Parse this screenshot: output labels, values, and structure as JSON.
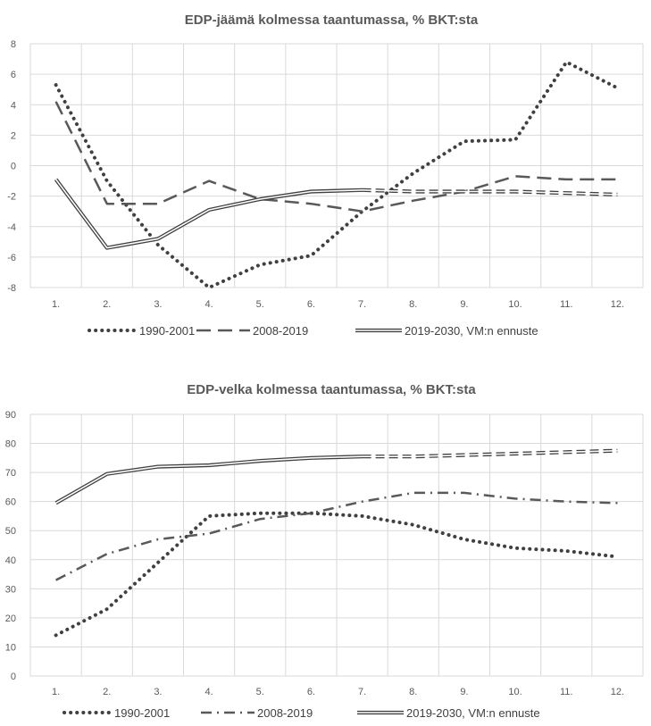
{
  "chart_data": [
    {
      "type": "line",
      "title": "EDP-jäämä kolmessa taantumassa, % BKT:sta",
      "categories": [
        "1.",
        "2.",
        "3.",
        "4.",
        "5.",
        "6.",
        "7.",
        "8.",
        "9.",
        "10.",
        "11.",
        "12."
      ],
      "ylim": [
        -8,
        8
      ],
      "yticks": [
        8,
        6,
        4,
        2,
        0,
        -2,
        -4,
        -6,
        -8
      ],
      "grid": true,
      "legend_position": "bottom",
      "series": [
        {
          "name": "1990-2001",
          "style": "dotted",
          "color": "#404040",
          "values": [
            5.3,
            -1.0,
            -5.2,
            -8.0,
            -6.5,
            -5.9,
            -3.0,
            -0.5,
            1.6,
            1.7,
            6.8,
            5.1
          ]
        },
        {
          "name": "2008-2019",
          "style": "dashed",
          "color": "#595959",
          "values": [
            4.2,
            -2.5,
            -2.5,
            -1.0,
            -2.2,
            -2.5,
            -3.0,
            -2.3,
            -1.7,
            -0.7,
            -0.9,
            -0.9
          ]
        },
        {
          "name": "2019-2030, VM:n ennuste",
          "style": "double",
          "color": "#404040",
          "forecast_from_index": 6,
          "values": [
            -0.9,
            -5.4,
            -4.8,
            -2.9,
            -2.2,
            -1.7,
            -1.6,
            -1.7,
            -1.7,
            -1.7,
            -1.8,
            -1.9
          ]
        }
      ]
    },
    {
      "type": "line",
      "title": "EDP-velka kolmessa taantumassa, % BKT:sta",
      "categories": [
        "1.",
        "2.",
        "3.",
        "4.",
        "5.",
        "6.",
        "7.",
        "8.",
        "9.",
        "10.",
        "11.",
        "12."
      ],
      "ylim": [
        0,
        90
      ],
      "yticks": [
        90,
        80,
        70,
        60,
        50,
        40,
        30,
        20,
        10,
        0
      ],
      "grid": true,
      "legend_position": "bottom",
      "series": [
        {
          "name": "1990-2001",
          "style": "dotted",
          "color": "#404040",
          "values": [
            14,
            23,
            39,
            55,
            56,
            56,
            55,
            52,
            47,
            44,
            43,
            41
          ]
        },
        {
          "name": "2008-2019",
          "style": "dashdot",
          "color": "#595959",
          "values": [
            33,
            42,
            47,
            49,
            54,
            56,
            60,
            63,
            63,
            61,
            60,
            59.5
          ]
        },
        {
          "name": "2019-2030, VM:n ennuste",
          "style": "double",
          "color": "#404040",
          "forecast_from_index": 6,
          "values": [
            59.5,
            69.5,
            72,
            72.5,
            74,
            75,
            75.5,
            75.5,
            76,
            76.5,
            77,
            77.5
          ]
        }
      ]
    }
  ]
}
